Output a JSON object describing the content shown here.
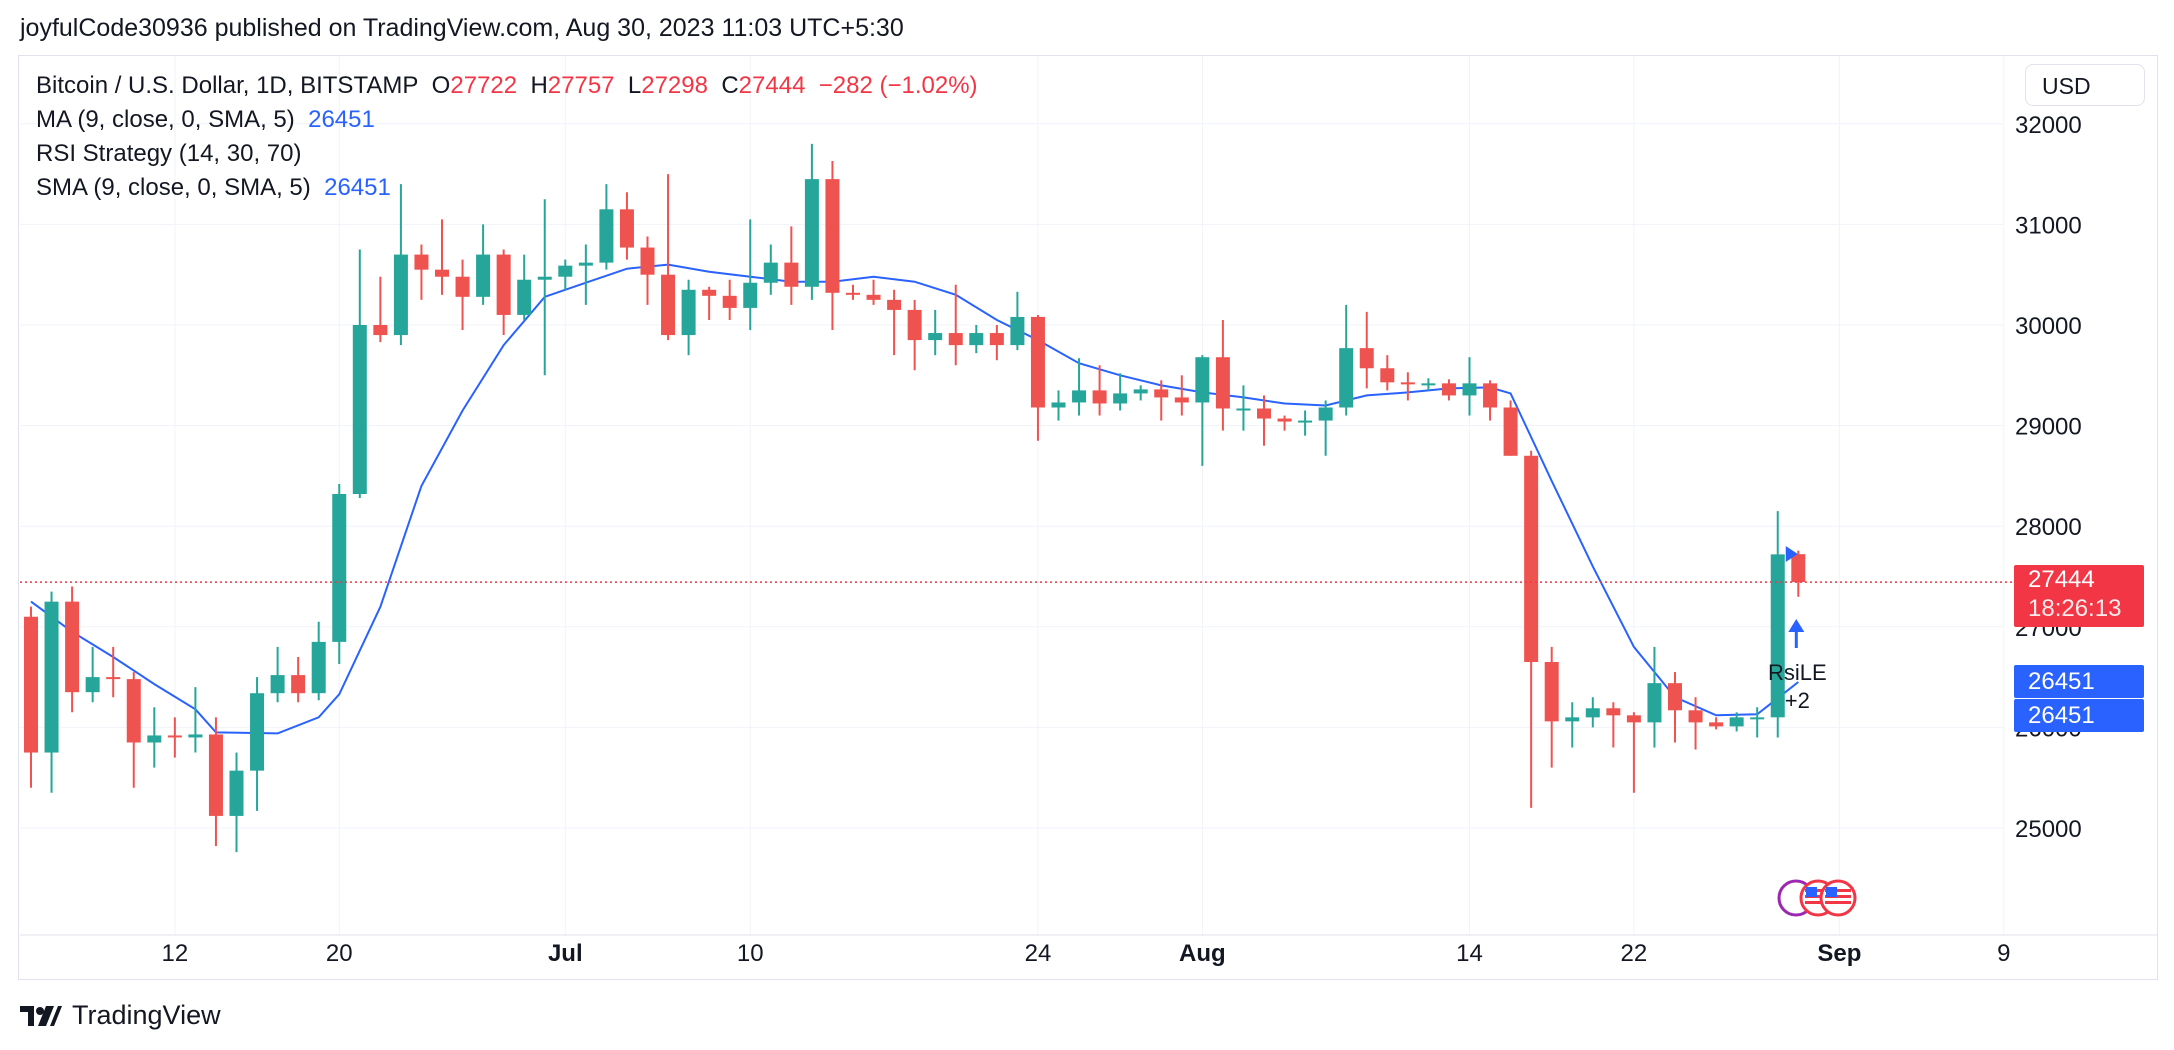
{
  "header": {
    "published_line": "joyfulCode30936 published on TradingView.com, Aug 30, 2023 11:03 UTC+5:30"
  },
  "legend": {
    "symbol": "Bitcoin / U.S. Dollar, 1D, BITSTAMP",
    "o_label": "O",
    "o_value": "27722",
    "h_label": "H",
    "h_value": "27757",
    "l_label": "L",
    "l_value": "27298",
    "c_label": "C",
    "c_value": "27444",
    "change": "−282 (−1.02%)",
    "ma_label": "MA (9, close, 0, SMA, 5)",
    "ma_value": "26451",
    "rsi_label": "RSI Strategy (14, 30, 70)",
    "sma_label": "SMA (9, close, 0, SMA, 5)",
    "sma_value": "26451"
  },
  "currency_button": "USD",
  "price_tags": {
    "last_price": "27444",
    "countdown": "18:26:13",
    "ma_tag": "26451",
    "sma_tag": "26451"
  },
  "signal": {
    "name": "RsiLE",
    "size": "+2"
  },
  "footer": {
    "brand": "TradingView"
  },
  "colors": {
    "up": "#26a69a",
    "down": "#ef5350",
    "ma_line": "#2962ff",
    "last_price": "#f23645"
  },
  "chart_data": {
    "type": "candlestick",
    "y_ticks": [
      25000,
      26000,
      27000,
      28000,
      29000,
      30000,
      31000,
      32000
    ],
    "y_tick_labels": [
      "25000",
      "26000",
      "27000",
      "28000",
      "29000",
      "30000",
      "31000",
      "32000"
    ],
    "ylim": [
      24300,
      32500
    ],
    "x_labels": [
      {
        "label": "12",
        "date": "2023-06-12",
        "bold": false
      },
      {
        "label": "20",
        "date": "2023-06-20",
        "bold": false
      },
      {
        "label": "Jul",
        "date": "2023-07-01",
        "bold": true
      },
      {
        "label": "10",
        "date": "2023-07-10",
        "bold": false
      },
      {
        "label": "24",
        "date": "2023-07-24",
        "bold": false
      },
      {
        "label": "Aug",
        "date": "2023-08-01",
        "bold": true
      },
      {
        "label": "14",
        "date": "2023-08-14",
        "bold": false
      },
      {
        "label": "22",
        "date": "2023-08-22",
        "bold": false
      },
      {
        "label": "Sep",
        "date": "2023-09-01",
        "bold": true
      },
      {
        "label": "9",
        "date": "2023-09-09",
        "bold": false
      }
    ],
    "last_price": 27444,
    "candles": [
      {
        "date": "2023-06-05",
        "o": 27100,
        "h": 27200,
        "l": 25400,
        "c": 25750
      },
      {
        "date": "2023-06-06",
        "o": 25750,
        "h": 27350,
        "l": 25350,
        "c": 27250
      },
      {
        "date": "2023-06-07",
        "o": 27250,
        "h": 27400,
        "l": 26150,
        "c": 26350
      },
      {
        "date": "2023-06-08",
        "o": 26350,
        "h": 26800,
        "l": 26250,
        "c": 26500
      },
      {
        "date": "2023-06-09",
        "o": 26500,
        "h": 26800,
        "l": 26300,
        "c": 26480
      },
      {
        "date": "2023-06-10",
        "o": 26480,
        "h": 26550,
        "l": 25400,
        "c": 25850
      },
      {
        "date": "2023-06-11",
        "o": 25850,
        "h": 26200,
        "l": 25600,
        "c": 25920
      },
      {
        "date": "2023-06-12",
        "o": 25920,
        "h": 26100,
        "l": 25700,
        "c": 25900
      },
      {
        "date": "2023-06-13",
        "o": 25900,
        "h": 26400,
        "l": 25750,
        "c": 25930
      },
      {
        "date": "2023-06-14",
        "o": 25930,
        "h": 26100,
        "l": 24820,
        "c": 25120
      },
      {
        "date": "2023-06-15",
        "o": 25120,
        "h": 25750,
        "l": 24760,
        "c": 25570
      },
      {
        "date": "2023-06-16",
        "o": 25570,
        "h": 26500,
        "l": 25170,
        "c": 26340
      },
      {
        "date": "2023-06-17",
        "o": 26340,
        "h": 26800,
        "l": 26250,
        "c": 26520
      },
      {
        "date": "2023-06-18",
        "o": 26520,
        "h": 26700,
        "l": 26250,
        "c": 26340
      },
      {
        "date": "2023-06-19",
        "o": 26340,
        "h": 27050,
        "l": 26270,
        "c": 26850
      },
      {
        "date": "2023-06-20",
        "o": 26850,
        "h": 28420,
        "l": 26630,
        "c": 28320
      },
      {
        "date": "2023-06-21",
        "o": 28320,
        "h": 30750,
        "l": 28280,
        "c": 30000
      },
      {
        "date": "2023-06-22",
        "o": 30000,
        "h": 30480,
        "l": 29830,
        "c": 29900
      },
      {
        "date": "2023-06-23",
        "o": 29900,
        "h": 31400,
        "l": 29800,
        "c": 30700
      },
      {
        "date": "2023-06-24",
        "o": 30700,
        "h": 30800,
        "l": 30250,
        "c": 30550
      },
      {
        "date": "2023-06-25",
        "o": 30550,
        "h": 31050,
        "l": 30300,
        "c": 30480
      },
      {
        "date": "2023-06-26",
        "o": 30480,
        "h": 30650,
        "l": 29950,
        "c": 30280
      },
      {
        "date": "2023-06-27",
        "o": 30280,
        "h": 31000,
        "l": 30200,
        "c": 30700
      },
      {
        "date": "2023-06-28",
        "o": 30700,
        "h": 30750,
        "l": 29900,
        "c": 30100
      },
      {
        "date": "2023-06-29",
        "o": 30100,
        "h": 30700,
        "l": 30050,
        "c": 30450
      },
      {
        "date": "2023-06-30",
        "o": 30450,
        "h": 31250,
        "l": 29500,
        "c": 30480
      },
      {
        "date": "2023-07-01",
        "o": 30480,
        "h": 30650,
        "l": 30350,
        "c": 30590
      },
      {
        "date": "2023-07-02",
        "o": 30590,
        "h": 30800,
        "l": 30200,
        "c": 30620
      },
      {
        "date": "2023-07-03",
        "o": 30620,
        "h": 31400,
        "l": 30550,
        "c": 31150
      },
      {
        "date": "2023-07-04",
        "o": 31150,
        "h": 31320,
        "l": 30650,
        "c": 30770
      },
      {
        "date": "2023-07-05",
        "o": 30770,
        "h": 30880,
        "l": 30200,
        "c": 30500
      },
      {
        "date": "2023-07-06",
        "o": 30500,
        "h": 31500,
        "l": 29850,
        "c": 29900
      },
      {
        "date": "2023-07-07",
        "o": 29900,
        "h": 30450,
        "l": 29700,
        "c": 30350
      },
      {
        "date": "2023-07-08",
        "o": 30350,
        "h": 30380,
        "l": 30050,
        "c": 30290
      },
      {
        "date": "2023-07-09",
        "o": 30290,
        "h": 30450,
        "l": 30050,
        "c": 30170
      },
      {
        "date": "2023-07-10",
        "o": 30170,
        "h": 31050,
        "l": 29950,
        "c": 30420
      },
      {
        "date": "2023-07-11",
        "o": 30420,
        "h": 30800,
        "l": 30300,
        "c": 30620
      },
      {
        "date": "2023-07-12",
        "o": 30620,
        "h": 30980,
        "l": 30200,
        "c": 30380
      },
      {
        "date": "2023-07-13",
        "o": 30380,
        "h": 31800,
        "l": 30250,
        "c": 31450
      },
      {
        "date": "2023-07-14",
        "o": 31450,
        "h": 31630,
        "l": 29950,
        "c": 30320
      },
      {
        "date": "2023-07-15",
        "o": 30320,
        "h": 30400,
        "l": 30250,
        "c": 30300
      },
      {
        "date": "2023-07-16",
        "o": 30300,
        "h": 30450,
        "l": 30200,
        "c": 30250
      },
      {
        "date": "2023-07-17",
        "o": 30250,
        "h": 30350,
        "l": 29700,
        "c": 30150
      },
      {
        "date": "2023-07-18",
        "o": 30150,
        "h": 30250,
        "l": 29550,
        "c": 29850
      },
      {
        "date": "2023-07-19",
        "o": 29850,
        "h": 30150,
        "l": 29700,
        "c": 29920
      },
      {
        "date": "2023-07-20",
        "o": 29920,
        "h": 30400,
        "l": 29600,
        "c": 29800
      },
      {
        "date": "2023-07-21",
        "o": 29800,
        "h": 30000,
        "l": 29720,
        "c": 29920
      },
      {
        "date": "2023-07-22",
        "o": 29920,
        "h": 30000,
        "l": 29650,
        "c": 29800
      },
      {
        "date": "2023-07-23",
        "o": 29800,
        "h": 30330,
        "l": 29750,
        "c": 30080
      },
      {
        "date": "2023-07-24",
        "o": 30080,
        "h": 30100,
        "l": 28850,
        "c": 29180
      },
      {
        "date": "2023-07-25",
        "o": 29180,
        "h": 29350,
        "l": 29050,
        "c": 29230
      },
      {
        "date": "2023-07-26",
        "o": 29230,
        "h": 29670,
        "l": 29100,
        "c": 29350
      },
      {
        "date": "2023-07-27",
        "o": 29350,
        "h": 29600,
        "l": 29100,
        "c": 29220
      },
      {
        "date": "2023-07-28",
        "o": 29220,
        "h": 29520,
        "l": 29150,
        "c": 29320
      },
      {
        "date": "2023-07-29",
        "o": 29320,
        "h": 29400,
        "l": 29250,
        "c": 29360
      },
      {
        "date": "2023-07-30",
        "o": 29360,
        "h": 29450,
        "l": 29050,
        "c": 29280
      },
      {
        "date": "2023-07-31",
        "o": 29280,
        "h": 29500,
        "l": 29100,
        "c": 29230
      },
      {
        "date": "2023-08-01",
        "o": 29230,
        "h": 29700,
        "l": 28600,
        "c": 29680
      },
      {
        "date": "2023-08-02",
        "o": 29680,
        "h": 30050,
        "l": 28950,
        "c": 29170
      },
      {
        "date": "2023-08-03",
        "o": 29170,
        "h": 29400,
        "l": 28950,
        "c": 29170
      },
      {
        "date": "2023-08-04",
        "o": 29170,
        "h": 29300,
        "l": 28800,
        "c": 29070
      },
      {
        "date": "2023-08-05",
        "o": 29070,
        "h": 29100,
        "l": 28950,
        "c": 29040
      },
      {
        "date": "2023-08-06",
        "o": 29040,
        "h": 29150,
        "l": 28900,
        "c": 29050
      },
      {
        "date": "2023-08-07",
        "o": 29050,
        "h": 29250,
        "l": 28700,
        "c": 29180
      },
      {
        "date": "2023-08-08",
        "o": 29180,
        "h": 30200,
        "l": 29100,
        "c": 29770
      },
      {
        "date": "2023-08-09",
        "o": 29770,
        "h": 30130,
        "l": 29370,
        "c": 29570
      },
      {
        "date": "2023-08-10",
        "o": 29570,
        "h": 29700,
        "l": 29350,
        "c": 29430
      },
      {
        "date": "2023-08-11",
        "o": 29430,
        "h": 29530,
        "l": 29250,
        "c": 29410
      },
      {
        "date": "2023-08-12",
        "o": 29410,
        "h": 29470,
        "l": 29350,
        "c": 29420
      },
      {
        "date": "2023-08-13",
        "o": 29420,
        "h": 29460,
        "l": 29250,
        "c": 29300
      },
      {
        "date": "2023-08-14",
        "o": 29300,
        "h": 29680,
        "l": 29100,
        "c": 29420
      },
      {
        "date": "2023-08-15",
        "o": 29420,
        "h": 29450,
        "l": 29050,
        "c": 29180
      },
      {
        "date": "2023-08-16",
        "o": 29180,
        "h": 29250,
        "l": 28700,
        "c": 28700
      },
      {
        "date": "2023-08-17",
        "o": 28700,
        "h": 28750,
        "l": 25200,
        "c": 26650
      },
      {
        "date": "2023-08-18",
        "o": 26650,
        "h": 26800,
        "l": 25600,
        "c": 26060
      },
      {
        "date": "2023-08-19",
        "o": 26060,
        "h": 26250,
        "l": 25800,
        "c": 26100
      },
      {
        "date": "2023-08-20",
        "o": 26100,
        "h": 26300,
        "l": 26000,
        "c": 26190
      },
      {
        "date": "2023-08-21",
        "o": 26190,
        "h": 26250,
        "l": 25800,
        "c": 26120
      },
      {
        "date": "2023-08-22",
        "o": 26120,
        "h": 26150,
        "l": 25350,
        "c": 26050
      },
      {
        "date": "2023-08-23",
        "o": 26050,
        "h": 26800,
        "l": 25800,
        "c": 26440
      },
      {
        "date": "2023-08-24",
        "o": 26440,
        "h": 26550,
        "l": 25850,
        "c": 26170
      },
      {
        "date": "2023-08-25",
        "o": 26170,
        "h": 26300,
        "l": 25780,
        "c": 26050
      },
      {
        "date": "2023-08-26",
        "o": 26050,
        "h": 26100,
        "l": 25980,
        "c": 26010
      },
      {
        "date": "2023-08-27",
        "o": 26010,
        "h": 26150,
        "l": 25960,
        "c": 26100
      },
      {
        "date": "2023-08-28",
        "o": 26100,
        "h": 26200,
        "l": 25900,
        "c": 26100
      },
      {
        "date": "2023-08-29",
        "o": 26100,
        "h": 28150,
        "l": 25900,
        "c": 27720
      },
      {
        "date": "2023-08-30",
        "o": 27722,
        "h": 27757,
        "l": 27298,
        "c": 27444
      }
    ],
    "ma_series": [
      {
        "date": "2023-06-05",
        "v": 27250
      },
      {
        "date": "2023-06-07",
        "v": 26950
      },
      {
        "date": "2023-06-09",
        "v": 26700
      },
      {
        "date": "2023-06-11",
        "v": 26430
      },
      {
        "date": "2023-06-13",
        "v": 26180
      },
      {
        "date": "2023-06-14",
        "v": 25950
      },
      {
        "date": "2023-06-17",
        "v": 25940
      },
      {
        "date": "2023-06-19",
        "v": 26100
      },
      {
        "date": "2023-06-20",
        "v": 26330
      },
      {
        "date": "2023-06-22",
        "v": 27200
      },
      {
        "date": "2023-06-24",
        "v": 28400
      },
      {
        "date": "2023-06-26",
        "v": 29150
      },
      {
        "date": "2023-06-28",
        "v": 29800
      },
      {
        "date": "2023-06-30",
        "v": 30280
      },
      {
        "date": "2023-07-02",
        "v": 30420
      },
      {
        "date": "2023-07-04",
        "v": 30560
      },
      {
        "date": "2023-07-06",
        "v": 30600
      },
      {
        "date": "2023-07-08",
        "v": 30530
      },
      {
        "date": "2023-07-10",
        "v": 30480
      },
      {
        "date": "2023-07-12",
        "v": 30430
      },
      {
        "date": "2023-07-14",
        "v": 30430
      },
      {
        "date": "2023-07-16",
        "v": 30480
      },
      {
        "date": "2023-07-18",
        "v": 30430
      },
      {
        "date": "2023-07-20",
        "v": 30300
      },
      {
        "date": "2023-07-22",
        "v": 30050
      },
      {
        "date": "2023-07-24",
        "v": 29850
      },
      {
        "date": "2023-07-26",
        "v": 29620
      },
      {
        "date": "2023-07-28",
        "v": 29500
      },
      {
        "date": "2023-07-30",
        "v": 29400
      },
      {
        "date": "2023-08-01",
        "v": 29330
      },
      {
        "date": "2023-08-03",
        "v": 29280
      },
      {
        "date": "2023-08-05",
        "v": 29220
      },
      {
        "date": "2023-08-07",
        "v": 29200
      },
      {
        "date": "2023-08-09",
        "v": 29300
      },
      {
        "date": "2023-08-11",
        "v": 29330
      },
      {
        "date": "2023-08-13",
        "v": 29370
      },
      {
        "date": "2023-08-15",
        "v": 29380
      },
      {
        "date": "2023-08-16",
        "v": 29320
      },
      {
        "date": "2023-08-18",
        "v": 28450
      },
      {
        "date": "2023-08-20",
        "v": 27600
      },
      {
        "date": "2023-08-22",
        "v": 26800
      },
      {
        "date": "2023-08-24",
        "v": 26300
      },
      {
        "date": "2023-08-26",
        "v": 26120
      },
      {
        "date": "2023-08-28",
        "v": 26130
      },
      {
        "date": "2023-08-30",
        "v": 26451
      }
    ]
  }
}
